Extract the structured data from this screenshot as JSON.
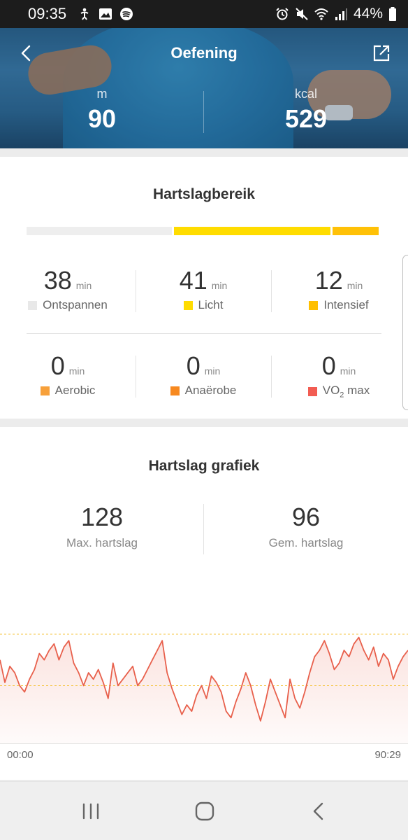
{
  "status_bar": {
    "time": "09:35",
    "battery": "44%",
    "icons_left": [
      "accessibility-icon",
      "image-icon",
      "spotify-icon"
    ],
    "icons_right": [
      "alarm-icon",
      "mute-icon",
      "wifi-icon",
      "signal-icon",
      "battery-icon"
    ]
  },
  "header": {
    "title": "Oefening",
    "distance_unit": "m",
    "distance_value": "90",
    "calories_unit": "kcal",
    "calories_value": "529"
  },
  "heart_rate_zones": {
    "title": "Hartslagbereik",
    "bar": [
      {
        "zone": "Ontspannen",
        "minutes": 38,
        "color": "#eeeeee"
      },
      {
        "zone": "Licht",
        "minutes": 41,
        "color": "#ffdc00"
      },
      {
        "zone": "Intensief",
        "minutes": 12,
        "color": "#ffc107"
      }
    ],
    "zones": [
      {
        "value": "38",
        "unit": "min",
        "label": "Ontspannen",
        "color": "#e8e8e8"
      },
      {
        "value": "41",
        "unit": "min",
        "label": "Licht",
        "color": "#ffdc00"
      },
      {
        "value": "12",
        "unit": "min",
        "label": "Intensief",
        "color": "#ffbf00"
      },
      {
        "value": "0",
        "unit": "min",
        "label": "Aerobic",
        "color": "#f7a03a"
      },
      {
        "value": "0",
        "unit": "min",
        "label": "Anaërobe",
        "color": "#f7891f"
      },
      {
        "value": "0",
        "unit": "min",
        "label_main": "VO",
        "label_sub": "2",
        "label_tail": " max",
        "color": "#f25c52"
      }
    ]
  },
  "heart_rate_chart": {
    "title": "Hartslag grafiek",
    "max_value": "128",
    "max_label": "Max. hartslag",
    "avg_value": "96",
    "avg_label": "Gem. hartslag",
    "start_time": "00:00",
    "end_time": "90:29",
    "line_color": "#e8604c",
    "fill_color": "#fbe3df",
    "guide_color": "#f5c542"
  },
  "chart_data": {
    "type": "line",
    "title": "Hartslag grafiek",
    "xlabel": "",
    "ylabel": "",
    "x_start": "00:00",
    "x_end": "90:29",
    "reference_lines": [
      128,
      96
    ],
    "ylim": [
      60,
      135
    ],
    "series": [
      {
        "values": [
          112,
          98,
          108,
          104,
          96,
          92,
          100,
          106,
          116,
          112,
          118,
          122,
          112,
          120,
          124,
          110,
          104,
          96,
          104,
          100,
          106,
          98,
          88,
          110,
          96,
          100,
          104,
          108,
          96,
          100,
          106,
          112,
          118,
          124,
          104,
          94,
          86,
          78,
          84,
          80,
          90,
          96,
          88,
          102,
          98,
          92,
          80,
          76,
          86,
          94,
          104,
          96,
          84,
          74,
          86,
          100,
          92,
          84,
          76,
          100,
          88,
          82,
          92,
          104,
          114,
          118,
          124,
          116,
          106,
          110,
          118,
          114,
          122,
          126,
          118,
          112,
          120,
          108,
          116,
          112,
          100,
          108,
          114,
          118
        ]
      }
    ]
  },
  "navbar": {
    "items": [
      "recent-apps-icon",
      "home-icon",
      "back-icon"
    ]
  }
}
